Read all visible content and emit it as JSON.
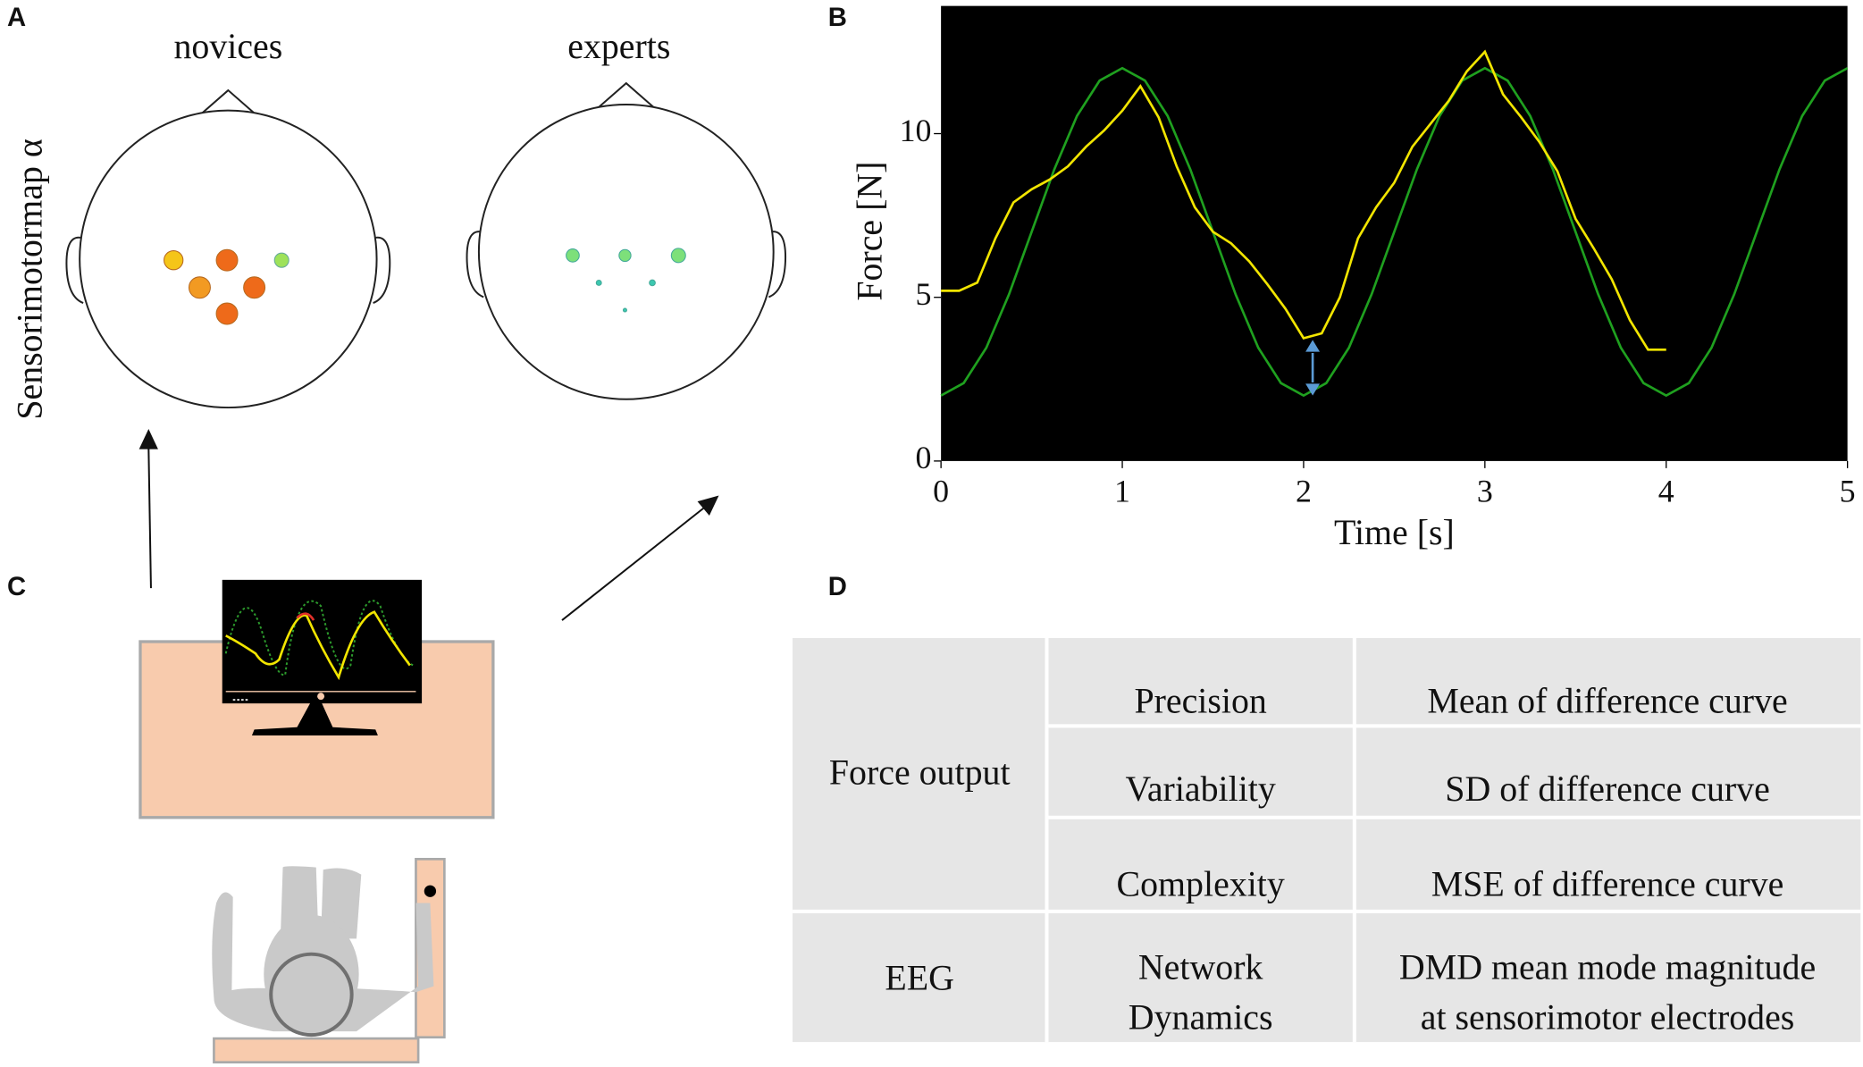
{
  "panel_labels": [
    "A",
    "B",
    "C",
    "D"
  ],
  "topomaps": {
    "ylabel": "Sensorimotormap α",
    "groups": [
      "novices",
      "experts"
    ]
  },
  "chart_data": {
    "type": "line",
    "xlabel": "Time [s]",
    "ylabel": "Force [N]",
    "xlim": [
      0,
      5
    ],
    "ylim": [
      0,
      13.9
    ],
    "xticks": [
      0,
      1,
      2,
      3,
      4,
      5
    ],
    "yticks": [
      0,
      5,
      10
    ],
    "background": "#000000",
    "series": [
      {
        "color": "#1fa01f",
        "x": [
          0,
          0.125,
          0.25,
          0.375,
          0.5,
          0.625,
          0.75,
          0.875,
          1,
          1.125,
          1.25,
          1.375,
          1.5,
          1.625,
          1.75,
          1.875,
          2,
          2.125,
          2.25,
          2.375,
          2.5,
          2.625,
          2.75,
          2.875,
          3,
          3.125,
          3.25,
          3.375,
          3.5,
          3.625,
          3.75,
          3.875,
          4,
          4.125,
          4.25,
          4.375,
          4.5,
          4.625,
          4.75,
          4.875,
          5
        ],
        "values": [
          2,
          2.38,
          3.46,
          5.09,
          7,
          8.91,
          10.54,
          11.62,
          12,
          11.62,
          10.54,
          8.91,
          7,
          5.09,
          3.46,
          2.38,
          2,
          2.38,
          3.46,
          5.09,
          7,
          8.91,
          10.54,
          11.62,
          12,
          11.62,
          10.54,
          8.91,
          7,
          5.09,
          3.46,
          2.38,
          2,
          2.38,
          3.46,
          5.09,
          7,
          8.91,
          10.54,
          11.62,
          12
        ]
      },
      {
        "color": "#f2e500",
        "x": [
          0,
          0.1,
          0.2,
          0.3,
          0.4,
          0.5,
          0.6,
          0.7,
          0.8,
          0.9,
          1,
          1.1,
          1.2,
          1.3,
          1.4,
          1.5,
          1.6,
          1.7,
          1.8,
          1.9,
          2,
          2.1,
          2.2,
          2.3,
          2.4,
          2.5,
          2.6,
          2.7,
          2.8,
          2.9,
          3,
          3.1,
          3.2,
          3.3,
          3.4,
          3.5,
          3.6,
          3.7,
          3.8,
          3.9,
          4
        ],
        "values": [
          5.2,
          5.2,
          5.45,
          6.8,
          7.9,
          8.3,
          8.6,
          9.0,
          9.6,
          10.1,
          10.7,
          11.45,
          10.5,
          9.0,
          7.75,
          7.0,
          6.65,
          6.1,
          5.4,
          4.65,
          3.75,
          3.9,
          5.0,
          6.8,
          7.75,
          8.5,
          9.6,
          10.3,
          11.0,
          11.9,
          12.5,
          11.2,
          10.5,
          9.75,
          8.85,
          7.4,
          6.5,
          5.55,
          4.3,
          3.4,
          3.4
        ]
      }
    ]
  },
  "table": {
    "rows": [
      {
        "category": "Force output",
        "metric": [
          "Precision"
        ],
        "measure": [
          "Mean of difference curve"
        ]
      },
      {
        "metric": [
          "Variability"
        ],
        "measure": [
          "SD of difference curve"
        ]
      },
      {
        "metric": [
          "Complexity"
        ],
        "measure": [
          "MSE of difference curve"
        ]
      },
      {
        "category": "EEG",
        "metric": [
          "Network",
          "Dynamics"
        ],
        "measure": [
          "DMD mean mode magnitude",
          "at sensorimotor electrodes"
        ]
      }
    ]
  }
}
